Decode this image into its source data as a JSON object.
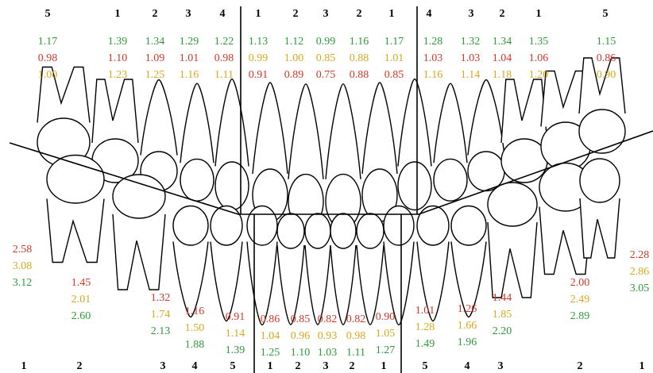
{
  "upper": {
    "tooth_numbers": [
      "5",
      "1",
      "2",
      "3",
      "4",
      "1",
      "2",
      "3",
      "2",
      "1",
      "4",
      "3",
      "2",
      "1",
      "5"
    ],
    "values": [
      [
        {
          "text": "1.17",
          "color": "#2e9a3a"
        },
        {
          "text": "0.98",
          "color": "#d2382a"
        },
        {
          "text": "1.00",
          "color": "#d9a81e"
        }
      ],
      [
        {
          "text": "1.39",
          "color": "#2e9a3a"
        },
        {
          "text": "1.10",
          "color": "#d2382a"
        },
        {
          "text": "1.23",
          "color": "#d9a81e"
        }
      ],
      [
        {
          "text": "1.34",
          "color": "#2e9a3a"
        },
        {
          "text": "1.09",
          "color": "#d2382a"
        },
        {
          "text": "1.25",
          "color": "#d9a81e"
        }
      ],
      [
        {
          "text": "1.29",
          "color": "#2e9a3a"
        },
        {
          "text": "1.01",
          "color": "#d2382a"
        },
        {
          "text": "1.16",
          "color": "#d9a81e"
        }
      ],
      [
        {
          "text": "1.22",
          "color": "#2e9a3a"
        },
        {
          "text": "0.98",
          "color": "#d2382a"
        },
        {
          "text": "1.11",
          "color": "#d9a81e"
        }
      ],
      [
        {
          "text": "1.13",
          "color": "#2e9a3a"
        },
        {
          "text": "0.99",
          "color": "#d9a81e"
        },
        {
          "text": "0.91",
          "color": "#d2382a"
        }
      ],
      [
        {
          "text": "1.12",
          "color": "#2e9a3a"
        },
        {
          "text": "1.00",
          "color": "#d9a81e"
        },
        {
          "text": "0.89",
          "color": "#d2382a"
        }
      ],
      [
        {
          "text": "0.99",
          "color": "#2e9a3a"
        },
        {
          "text": "0.85",
          "color": "#d9a81e"
        },
        {
          "text": "0.75",
          "color": "#d2382a"
        }
      ],
      [
        {
          "text": "1.16",
          "color": "#2e9a3a"
        },
        {
          "text": "0.88",
          "color": "#d9a81e"
        },
        {
          "text": "0.88",
          "color": "#d2382a"
        }
      ],
      [
        {
          "text": "1.17",
          "color": "#2e9a3a"
        },
        {
          "text": "1.01",
          "color": "#d9a81e"
        },
        {
          "text": "0.85",
          "color": "#d2382a"
        }
      ],
      [
        {
          "text": "1.28",
          "color": "#2e9a3a"
        },
        {
          "text": "1.03",
          "color": "#d2382a"
        },
        {
          "text": "1.16",
          "color": "#d9a81e"
        }
      ],
      [
        {
          "text": "1.32",
          "color": "#2e9a3a"
        },
        {
          "text": "1.03",
          "color": "#d2382a"
        },
        {
          "text": "1.14",
          "color": "#d9a81e"
        }
      ],
      [
        {
          "text": "1.34",
          "color": "#2e9a3a"
        },
        {
          "text": "1.04",
          "color": "#d2382a"
        },
        {
          "text": "1.18",
          "color": "#d9a81e"
        }
      ],
      [
        {
          "text": "1.35",
          "color": "#2e9a3a"
        },
        {
          "text": "1.06",
          "color": "#d2382a"
        },
        {
          "text": "1.20",
          "color": "#d9a81e"
        }
      ],
      [
        {
          "text": "1.15",
          "color": "#2e9a3a"
        },
        {
          "text": "0.86",
          "color": "#d2382a"
        },
        {
          "text": "0.90",
          "color": "#d9a81e"
        }
      ]
    ]
  },
  "lower": {
    "tooth_numbers": [
      "1",
      "2",
      "3",
      "4",
      "5",
      "1",
      "2",
      "3",
      "2",
      "1",
      "5",
      "4",
      "3",
      "2",
      "1"
    ],
    "values": [
      [
        {
          "text": "2.58",
          "color": "#d2382a"
        },
        {
          "text": "3.08",
          "color": "#d9a81e"
        },
        {
          "text": "3.12",
          "color": "#2e9a3a"
        }
      ],
      [
        {
          "text": "1.45",
          "color": "#d2382a"
        },
        {
          "text": "2.01",
          "color": "#d9a81e"
        },
        {
          "text": "2.60",
          "color": "#2e9a3a"
        }
      ],
      [
        {
          "text": "1.32",
          "color": "#d2382a"
        },
        {
          "text": "1.74",
          "color": "#d9a81e"
        },
        {
          "text": "2.13",
          "color": "#2e9a3a"
        }
      ],
      [
        {
          "text": "1.16",
          "color": "#d2382a"
        },
        {
          "text": "1.50",
          "color": "#d9a81e"
        },
        {
          "text": "1.88",
          "color": "#2e9a3a"
        }
      ],
      [
        {
          "text": "0.91",
          "color": "#d2382a"
        },
        {
          "text": "1.14",
          "color": "#d9a81e"
        },
        {
          "text": "1.39",
          "color": "#2e9a3a"
        }
      ],
      [
        {
          "text": "0.86",
          "color": "#d2382a"
        },
        {
          "text": "1.04",
          "color": "#d9a81e"
        },
        {
          "text": "1.25",
          "color": "#2e9a3a"
        }
      ],
      [
        {
          "text": "0.85",
          "color": "#d2382a"
        },
        {
          "text": "0.96",
          "color": "#d9a81e"
        },
        {
          "text": "1.10",
          "color": "#2e9a3a"
        }
      ],
      [
        {
          "text": "0.82",
          "color": "#d2382a"
        },
        {
          "text": "0.93",
          "color": "#d9a81e"
        },
        {
          "text": "1.03",
          "color": "#2e9a3a"
        }
      ],
      [
        {
          "text": "0.82",
          "color": "#d2382a"
        },
        {
          "text": "0.98",
          "color": "#d9a81e"
        },
        {
          "text": "1.11",
          "color": "#2e9a3a"
        }
      ],
      [
        {
          "text": "0.90",
          "color": "#d2382a"
        },
        {
          "text": "1.05",
          "color": "#d9a81e"
        },
        {
          "text": "1.27",
          "color": "#2e9a3a"
        }
      ],
      [
        {
          "text": "1.01",
          "color": "#d2382a"
        },
        {
          "text": "1.28",
          "color": "#d9a81e"
        },
        {
          "text": "1.49",
          "color": "#2e9a3a"
        }
      ],
      [
        {
          "text": "1.26",
          "color": "#d2382a"
        },
        {
          "text": "1.66",
          "color": "#d9a81e"
        },
        {
          "text": "1.96",
          "color": "#2e9a3a"
        }
      ],
      [
        {
          "text": "1.44",
          "color": "#d2382a"
        },
        {
          "text": "1.85",
          "color": "#d9a81e"
        },
        {
          "text": "2.20",
          "color": "#2e9a3a"
        }
      ],
      [
        {
          "text": "2.00",
          "color": "#d2382a"
        },
        {
          "text": "2.49",
          "color": "#d9a81e"
        },
        {
          "text": "2.89",
          "color": "#2e9a3a"
        }
      ],
      [
        {
          "text": "2.28",
          "color": "#d2382a"
        },
        {
          "text": "2.86",
          "color": "#d9a81e"
        },
        {
          "text": "3.05",
          "color": "#2e9a3a"
        }
      ]
    ]
  }
}
